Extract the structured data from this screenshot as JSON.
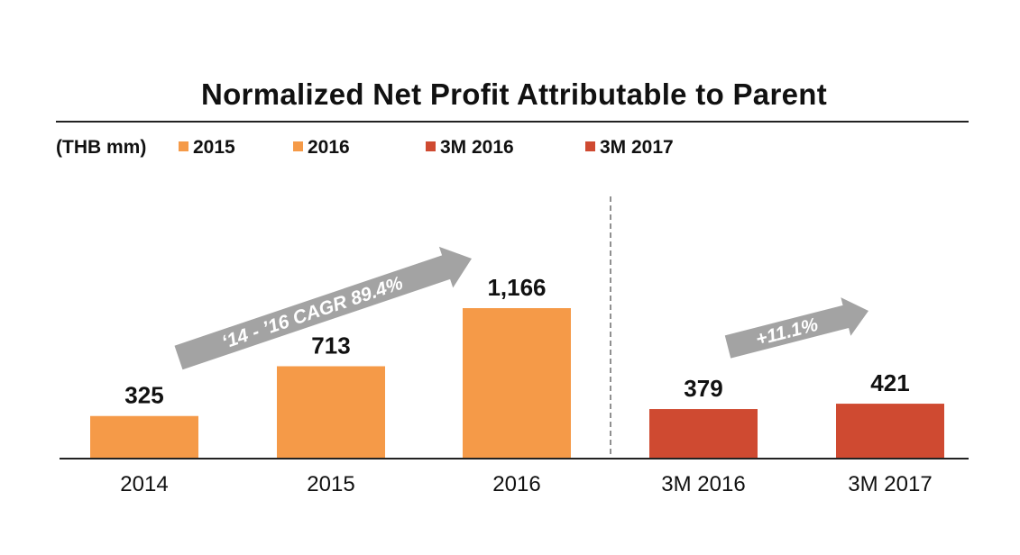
{
  "chart_data": {
    "type": "bar",
    "title": "Normalized Net Profit Attributable to Parent",
    "unit": "(THB mm)",
    "categories": [
      "2014",
      "2015",
      "2016",
      "3M 2016",
      "3M 2017"
    ],
    "values": [
      325,
      713,
      1166,
      379,
      421
    ],
    "value_labels": [
      "325",
      "713",
      "1,166",
      "379",
      "421"
    ],
    "legend": [
      {
        "label": "2015",
        "color": "#F59A48"
      },
      {
        "label": "2016",
        "color": "#F59A48"
      },
      {
        "label": "3M 2016",
        "color": "#CF4A31"
      },
      {
        "label": "3M 2017",
        "color": "#CF4A31"
      }
    ],
    "bar_colors": [
      "#F59A48",
      "#F59A48",
      "#F59A48",
      "#CF4A31",
      "#CF4A31"
    ],
    "annotations": [
      "‘14 - ’16 CAGR 89.4%",
      "+11.1%"
    ],
    "ylim": [
      0,
      1166
    ],
    "grid": false,
    "divider_after_category": "2016"
  }
}
